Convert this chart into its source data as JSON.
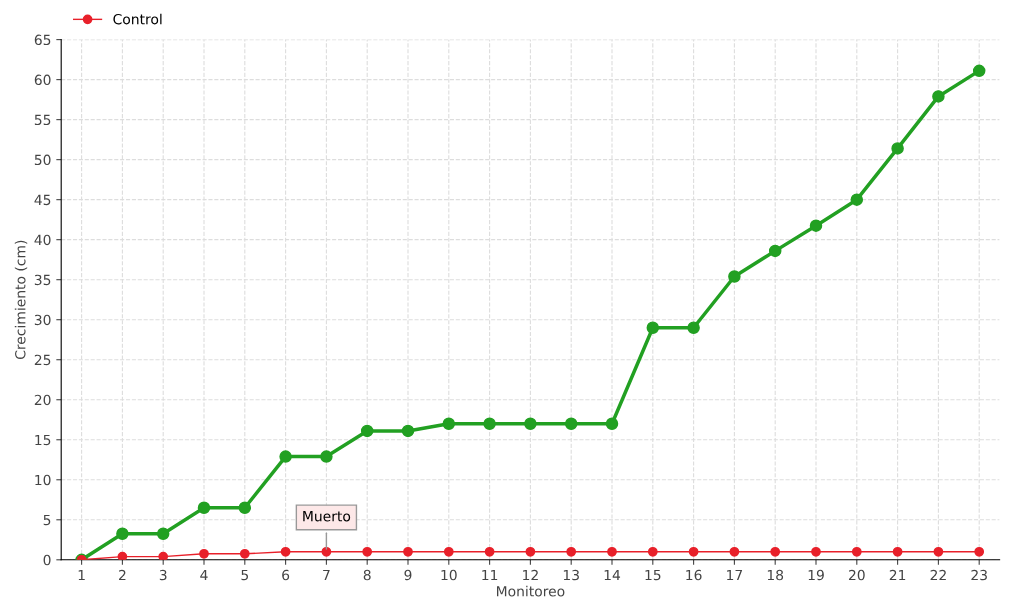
{
  "chart_data": {
    "type": "line",
    "xlabel": "Monitoreo",
    "ylabel": "Crecimiento (cm)",
    "categories": [
      "1",
      "2",
      "3",
      "4",
      "5",
      "6",
      "7",
      "8",
      "9",
      "10",
      "11",
      "12",
      "13",
      "14",
      "15",
      "16",
      "17",
      "18",
      "19",
      "20",
      "21",
      "22",
      "23"
    ],
    "series": [
      {
        "color": "#22a022",
        "values": [
          0,
          3.25,
          3.25,
          6.5,
          6.5,
          12.9,
          12.9,
          16.1,
          16.1,
          17,
          17,
          17,
          17,
          17,
          29,
          29,
          35.4,
          38.6,
          41.75,
          45,
          51.4,
          57.9,
          61.1
        ]
      },
      {
        "name": "Control",
        "color": "#e8202a",
        "values": [
          0,
          0.4,
          0.4,
          0.75,
          0.75,
          1,
          1,
          1,
          1,
          1,
          1,
          1,
          1,
          1,
          1,
          1,
          1,
          1,
          1,
          1,
          1,
          1,
          1
        ]
      }
    ],
    "ylim": [
      0,
      65
    ],
    "yticks": [
      0,
      5,
      10,
      15,
      20,
      25,
      30,
      35,
      40,
      45,
      50,
      55,
      60,
      65
    ],
    "grid": true,
    "legend": "top left",
    "marker": "circle",
    "line_style": "solid",
    "annotations": [
      {
        "text": "Muerto",
        "x": "7",
        "y": 1
      }
    ]
  }
}
